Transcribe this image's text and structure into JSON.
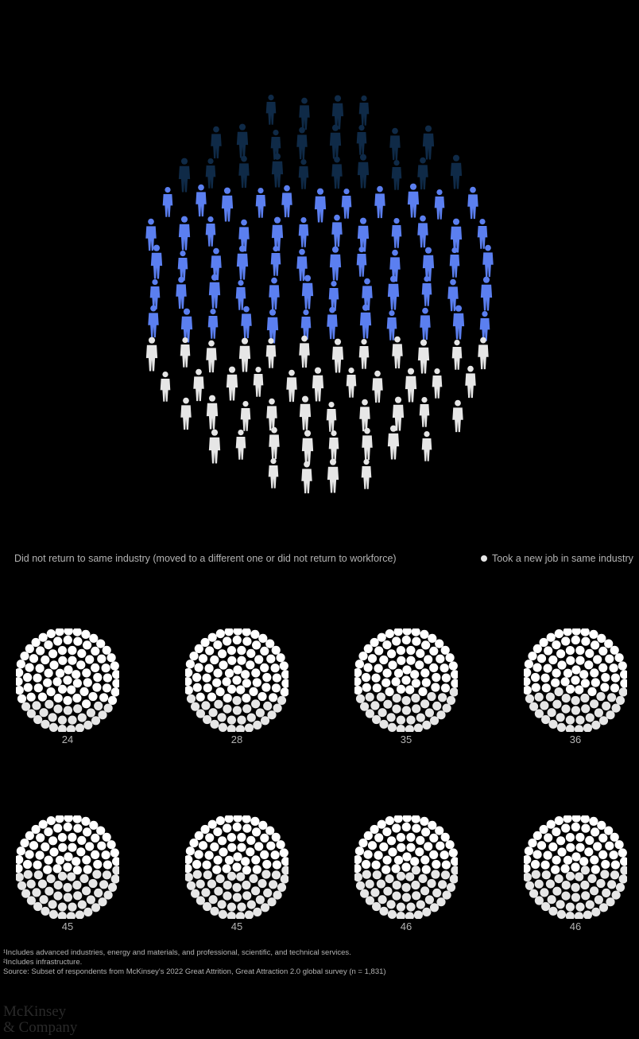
{
  "legend": {
    "not_returned": "Did not return to same industry (moved to a different one or did not return to workforce)",
    "same_industry": "Took a new job in same industry"
  },
  "colors": {
    "background": "#000000",
    "figure_dark": "#0f2a47",
    "figure_blue": "#5b7ff0",
    "figure_light": "#e6e6e6",
    "dot": "#ffffff",
    "dot_highlight": "#e6e6e6",
    "text": "#b3b3b3"
  },
  "chart_data": {
    "type": "pictogram",
    "hero": {
      "segments": [
        {
          "color": "dark",
          "rows": 3
        },
        {
          "color": "blue",
          "rows": 5
        },
        {
          "color": "light",
          "rows": 5
        }
      ]
    },
    "small_multiples": [
      {
        "value": 24
      },
      {
        "value": 28
      },
      {
        "value": 35
      },
      {
        "value": 36
      },
      {
        "value": 45
      },
      {
        "value": 45
      },
      {
        "value": 46
      },
      {
        "value": 46
      }
    ],
    "dots_per_circle": 100
  },
  "footnotes": {
    "note1": "¹Includes advanced industries, energy and materials, and professional, scientific, and technical services.",
    "note2": "²Includes infrastructure.",
    "source": "Source: Subset of respondents from McKinsey's 2022 Great Attrition, Great Attraction 2.0 global survey (n = 1,831)"
  },
  "logo": {
    "line1": "McKinsey",
    "line2": "& Company"
  }
}
